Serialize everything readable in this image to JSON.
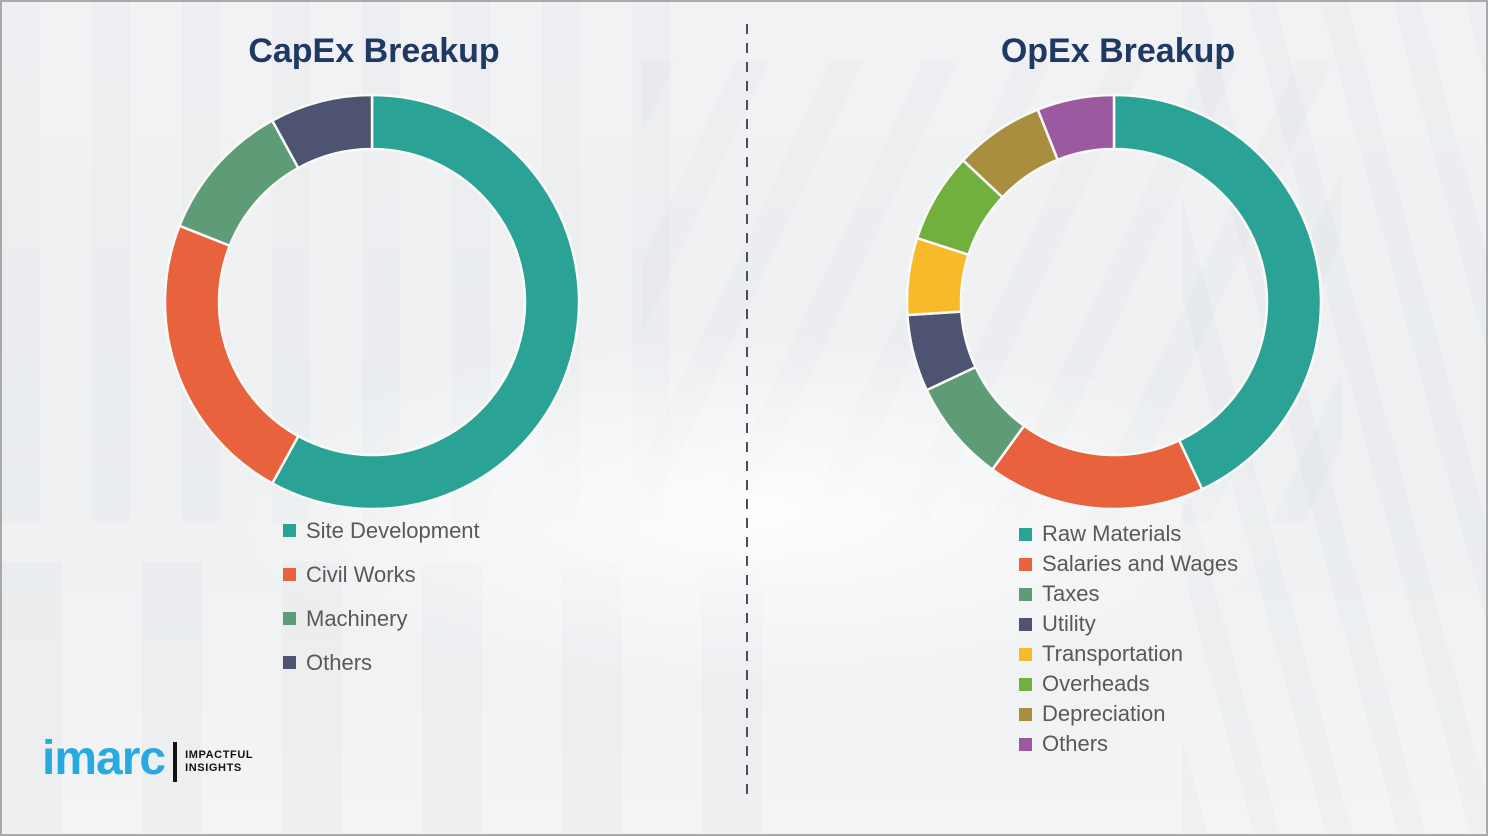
{
  "page": {
    "background_color": "#eef0f2",
    "border_color": "#a9a9a9",
    "divider_color": "#4b4f55",
    "title_color": "#1f3864",
    "legend_text_color": "#595959",
    "segment_separator_color": "#fafaf8"
  },
  "logo": {
    "brand": "imarc",
    "tagline_line1": "IMPACTFUL",
    "tagline_line2": "INSIGHTS",
    "brand_color": "#29a9e1",
    "tagline_color": "#111111"
  },
  "chart_data": [
    {
      "type": "pie",
      "variant": "donut",
      "title": "CapEx Breakup",
      "legend_position": "bottom-left",
      "start_angle_deg": 0,
      "direction": "clockwise",
      "units": "percent-share (estimated from arc angles)",
      "segments": [
        {
          "label": "Site Development",
          "value": 58,
          "color": "#2aa396"
        },
        {
          "label": "Civil Works",
          "value": 23,
          "color": "#e8623e"
        },
        {
          "label": "Machinery",
          "value": 11,
          "color": "#5d9c76"
        },
        {
          "label": "Others",
          "value": 8,
          "color": "#4d5370"
        }
      ]
    },
    {
      "type": "pie",
      "variant": "donut",
      "title": "OpEx Breakup",
      "legend_position": "bottom-left",
      "start_angle_deg": 0,
      "direction": "clockwise",
      "units": "percent-share (estimated from arc angles)",
      "segments": [
        {
          "label": "Raw Materials",
          "value": 43,
          "color": "#2aa396"
        },
        {
          "label": "Salaries and Wages",
          "value": 17,
          "color": "#e8623e"
        },
        {
          "label": "Taxes",
          "value": 8,
          "color": "#5d9c76"
        },
        {
          "label": "Utility",
          "value": 6,
          "color": "#4d5370"
        },
        {
          "label": "Transportation",
          "value": 6,
          "color": "#f6ba2b"
        },
        {
          "label": "Overheads",
          "value": 7,
          "color": "#71b03c"
        },
        {
          "label": "Depreciation",
          "value": 7,
          "color": "#a98e3f"
        },
        {
          "label": "Others",
          "value": 6,
          "color": "#9b59a0"
        }
      ]
    }
  ]
}
